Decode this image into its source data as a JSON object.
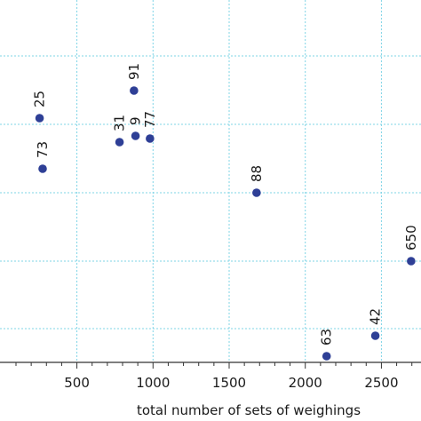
{
  "chart_data": {
    "type": "scatter",
    "xlabel": "total number of sets of weighings",
    "ylabel": "",
    "title": "",
    "xlim": [
      -5,
      2760
    ],
    "x_ticks": [
      500,
      1000,
      1500,
      2000,
      2500
    ],
    "x_tick_labels": [
      "500",
      "1000",
      "1500",
      "2000",
      "2500"
    ],
    "grid": true,
    "marker_color": "#2e3f96",
    "grid_color": "#7fd4e6",
    "points": [
      {
        "x": 255,
        "label": "25"
      },
      {
        "x": 275,
        "label": "73"
      },
      {
        "x": 780,
        "label": "31"
      },
      {
        "x": 875,
        "label": "91"
      },
      {
        "x": 885,
        "label": "9"
      },
      {
        "x": 980,
        "label": "77"
      },
      {
        "x": 1680,
        "label": "88"
      },
      {
        "x": 2140,
        "label": "63"
      },
      {
        "x": 2460,
        "label": "42"
      },
      {
        "x": 2695,
        "label": "650"
      }
    ]
  }
}
